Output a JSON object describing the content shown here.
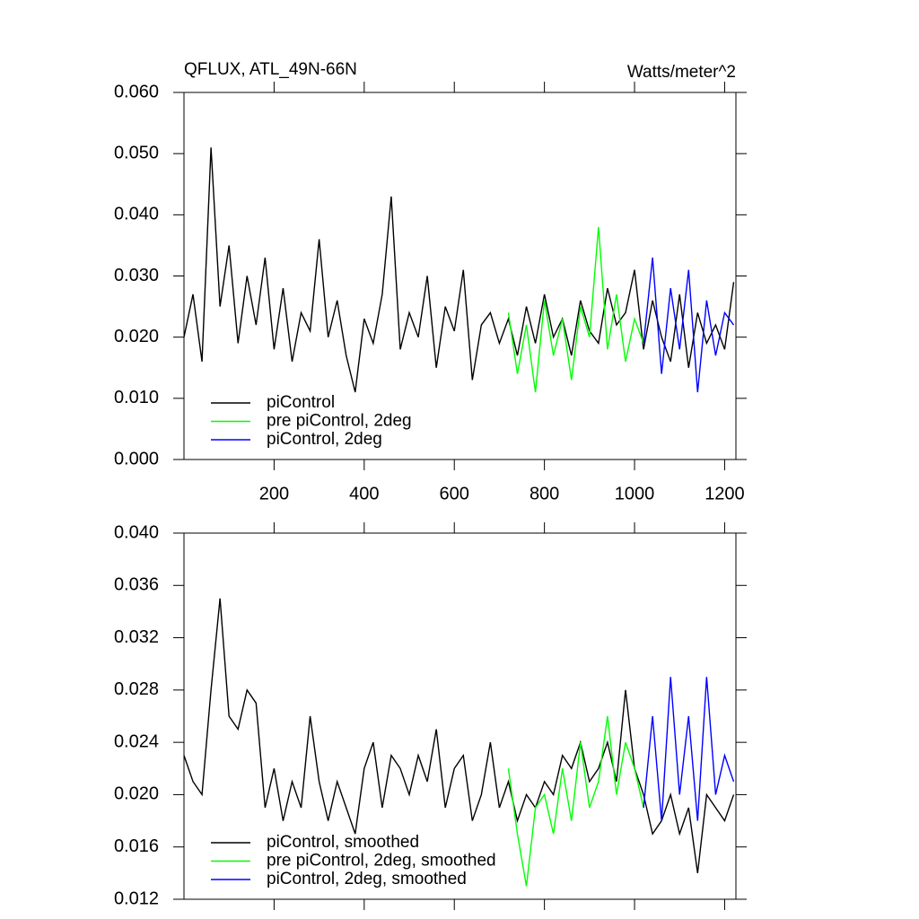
{
  "chart_data": [
    {
      "type": "line",
      "title": "QFLUX, ATL_49N-66N",
      "subtitle": "Watts/meter^2",
      "xlim": [
        0,
        1225
      ],
      "xticks": [
        200,
        400,
        600,
        800,
        1000,
        1200
      ],
      "ylim": [
        0,
        0.06
      ],
      "yticks": [
        {
          "value": 0,
          "label": "0.000"
        },
        {
          "value": 0.01,
          "label": "0.010"
        },
        {
          "value": 0.02,
          "label": "0.020"
        },
        {
          "value": 0.03,
          "label": "0.030"
        },
        {
          "value": 0.04,
          "label": "0.040"
        },
        {
          "value": 0.05,
          "label": "0.050"
        },
        {
          "value": 0.06,
          "label": "0.060"
        }
      ],
      "legend": "lower left",
      "series": [
        {
          "name": "piControl",
          "color": "#000000",
          "x": [
            0,
            20,
            40,
            60,
            80,
            100,
            120,
            140,
            160,
            180,
            200,
            220,
            240,
            260,
            280,
            300,
            320,
            340,
            360,
            380,
            400,
            420,
            440,
            460,
            480,
            500,
            520,
            540,
            560,
            580,
            600,
            620,
            640,
            660,
            680,
            700,
            720,
            740,
            760,
            780,
            800,
            820,
            840,
            860,
            880,
            900,
            920,
            940,
            960,
            980,
            1000,
            1020,
            1040,
            1060,
            1080,
            1100,
            1120,
            1140,
            1160,
            1180,
            1200,
            1220
          ],
          "values": [
            0.02,
            0.027,
            0.016,
            0.051,
            0.025,
            0.035,
            0.019,
            0.03,
            0.022,
            0.033,
            0.018,
            0.028,
            0.016,
            0.024,
            0.021,
            0.036,
            0.02,
            0.026,
            0.017,
            0.011,
            0.023,
            0.019,
            0.027,
            0.043,
            0.018,
            0.024,
            0.02,
            0.03,
            0.015,
            0.025,
            0.021,
            0.031,
            0.013,
            0.022,
            0.024,
            0.019,
            0.023,
            0.017,
            0.025,
            0.019,
            0.027,
            0.02,
            0.023,
            0.017,
            0.026,
            0.021,
            0.019,
            0.028,
            0.022,
            0.024,
            0.031,
            0.018,
            0.026,
            0.02,
            0.016,
            0.027,
            0.015,
            0.024,
            0.019,
            0.022,
            0.018,
            0.029
          ]
        },
        {
          "name": "pre piControl, 2deg",
          "color": "#00ff00",
          "x": [
            720,
            740,
            760,
            780,
            800,
            820,
            840,
            860,
            880,
            900,
            920,
            940,
            960,
            980,
            1000,
            1020
          ],
          "values": [
            0.024,
            0.014,
            0.022,
            0.011,
            0.026,
            0.017,
            0.023,
            0.013,
            0.025,
            0.02,
            0.038,
            0.018,
            0.027,
            0.016,
            0.023,
            0.019
          ]
        },
        {
          "name": "piControl, 2deg",
          "color": "#0000ff",
          "x": [
            1020,
            1040,
            1060,
            1080,
            1100,
            1120,
            1140,
            1160,
            1180,
            1200,
            1220
          ],
          "values": [
            0.019,
            0.033,
            0.014,
            0.028,
            0.018,
            0.031,
            0.011,
            0.026,
            0.017,
            0.024,
            0.022
          ]
        }
      ]
    },
    {
      "type": "line",
      "xlim": [
        0,
        1225
      ],
      "ylim": [
        0.012,
        0.04
      ],
      "yticks": [
        0.012,
        0.016,
        {
          "value": 0.02,
          "label": "0.020"
        },
        0.024,
        0.028,
        0.032,
        0.036,
        {
          "value": 0.04,
          "label": "0.040"
        }
      ],
      "legend": "lower left",
      "series": [
        {
          "name": "piControl, smoothed",
          "color": "#000000",
          "x": [
            0,
            20,
            40,
            60,
            80,
            100,
            120,
            140,
            160,
            180,
            200,
            220,
            240,
            260,
            280,
            300,
            320,
            340,
            360,
            380,
            400,
            420,
            440,
            460,
            480,
            500,
            520,
            540,
            560,
            580,
            600,
            620,
            640,
            660,
            680,
            700,
            720,
            740,
            760,
            780,
            800,
            820,
            840,
            860,
            880,
            900,
            920,
            940,
            960,
            980,
            1000,
            1020,
            1040,
            1060,
            1080,
            1100,
            1120,
            1140,
            1160,
            1180,
            1200,
            1220
          ],
          "values": [
            0.023,
            0.021,
            0.02,
            0.028,
            0.035,
            0.026,
            0.025,
            0.028,
            0.027,
            0.019,
            0.022,
            0.018,
            0.021,
            0.019,
            0.026,
            0.021,
            0.018,
            0.021,
            0.019,
            0.017,
            0.022,
            0.024,
            0.019,
            0.023,
            0.022,
            0.02,
            0.023,
            0.021,
            0.025,
            0.019,
            0.022,
            0.023,
            0.018,
            0.02,
            0.024,
            0.019,
            0.021,
            0.018,
            0.02,
            0.019,
            0.021,
            0.02,
            0.023,
            0.022,
            0.024,
            0.021,
            0.022,
            0.024,
            0.021,
            0.028,
            0.022,
            0.02,
            0.017,
            0.018,
            0.02,
            0.017,
            0.019,
            0.014,
            0.02,
            0.019,
            0.018,
            0.02
          ]
        },
        {
          "name": "pre piControl, 2deg, smoothed",
          "color": "#00ff00",
          "x": [
            720,
            740,
            760,
            780,
            800,
            820,
            840,
            860,
            880,
            900,
            920,
            940,
            960,
            980,
            1000,
            1020
          ],
          "values": [
            0.022,
            0.017,
            0.013,
            0.019,
            0.02,
            0.017,
            0.022,
            0.018,
            0.024,
            0.019,
            0.021,
            0.026,
            0.02,
            0.024,
            0.022,
            0.019
          ]
        },
        {
          "name": "piControl, 2deg, smoothed",
          "color": "#0000ff",
          "x": [
            1020,
            1040,
            1060,
            1080,
            1100,
            1120,
            1140,
            1160,
            1180,
            1200,
            1220
          ],
          "values": [
            0.019,
            0.026,
            0.018,
            0.029,
            0.02,
            0.026,
            0.018,
            0.029,
            0.02,
            0.023,
            0.021
          ]
        }
      ]
    }
  ]
}
